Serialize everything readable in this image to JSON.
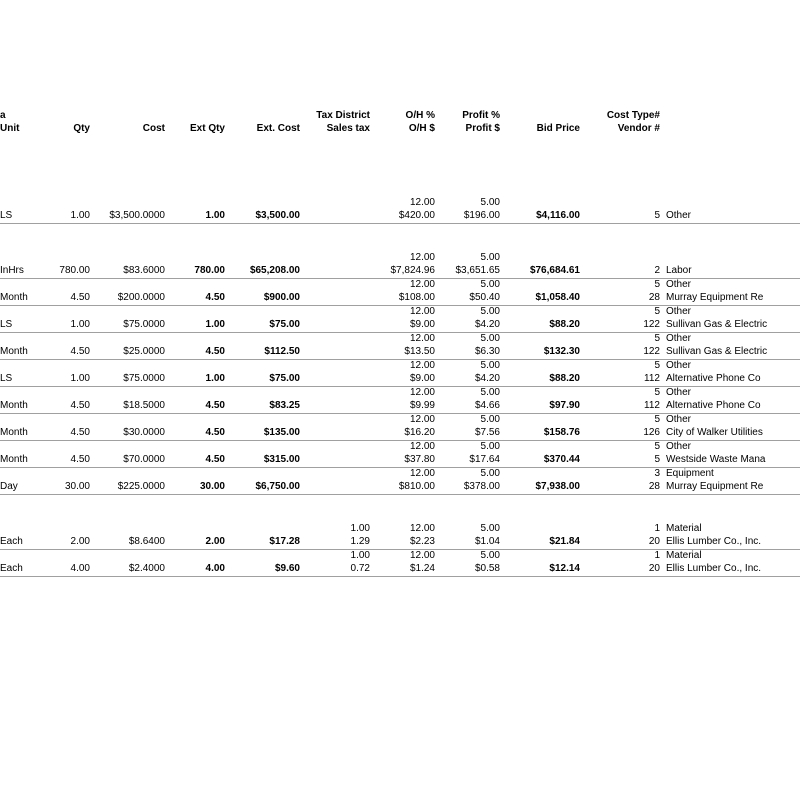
{
  "header": {
    "a": "a",
    "unit": "Unit",
    "qty": "Qty",
    "cost": "Cost",
    "extqty": "Ext Qty",
    "extcost": "Ext. Cost",
    "tax1": "Tax District",
    "tax2": "Sales tax",
    "oh1": "O/H %",
    "oh2": "O/H $",
    "profit1": "Profit %",
    "profit2": "Profit $",
    "bid": "Bid Price",
    "ct1": "Cost Type#",
    "ct2": "Vendor #"
  },
  "rows": [
    {
      "unit": "LS",
      "qty": "1.00",
      "cost": "$3,500.0000",
      "extqty": "1.00",
      "extcost": "$3,500.00",
      "tax": "",
      "ohp": "12.00",
      "ohd": "$420.00",
      "pp": "5.00",
      "pd": "$196.00",
      "bid": "$4,116.00",
      "ctn": "5",
      "ctl": "Other",
      "vn": "",
      "vl": ""
    },
    {
      "unit": "InHrs",
      "qty": "780.00",
      "cost": "$83.6000",
      "extqty": "780.00",
      "extcost": "$65,208.00",
      "tax": "",
      "ohp": "12.00",
      "ohd": "$7,824.96",
      "pp": "5.00",
      "pd": "$3,651.65",
      "bid": "$76,684.61",
      "ctn": "2",
      "ctl": "Labor",
      "vn": "",
      "vl": ""
    },
    {
      "unit": "Month",
      "qty": "4.50",
      "cost": "$200.0000",
      "extqty": "4.50",
      "extcost": "$900.00",
      "tax": "",
      "ohp": "12.00",
      "ohd": "$108.00",
      "pp": "5.00",
      "pd": "$50.40",
      "bid": "$1,058.40",
      "ctn": "5",
      "ctl": "Other",
      "vn": "28",
      "vl": "Murray Equipment Re"
    },
    {
      "unit": "LS",
      "qty": "1.00",
      "cost": "$75.0000",
      "extqty": "1.00",
      "extcost": "$75.00",
      "tax": "",
      "ohp": "12.00",
      "ohd": "$9.00",
      "pp": "5.00",
      "pd": "$4.20",
      "bid": "$88.20",
      "ctn": "5",
      "ctl": "Other",
      "vn": "122",
      "vl": "Sullivan Gas & Electric"
    },
    {
      "unit": "Month",
      "qty": "4.50",
      "cost": "$25.0000",
      "extqty": "4.50",
      "extcost": "$112.50",
      "tax": "",
      "ohp": "12.00",
      "ohd": "$13.50",
      "pp": "5.00",
      "pd": "$6.30",
      "bid": "$132.30",
      "ctn": "5",
      "ctl": "Other",
      "vn": "122",
      "vl": "Sullivan Gas & Electric"
    },
    {
      "unit": "LS",
      "qty": "1.00",
      "cost": "$75.0000",
      "extqty": "1.00",
      "extcost": "$75.00",
      "tax": "",
      "ohp": "12.00",
      "ohd": "$9.00",
      "pp": "5.00",
      "pd": "$4.20",
      "bid": "$88.20",
      "ctn": "5",
      "ctl": "Other",
      "vn": "112",
      "vl": "Alternative Phone Co"
    },
    {
      "unit": "Month",
      "qty": "4.50",
      "cost": "$18.5000",
      "extqty": "4.50",
      "extcost": "$83.25",
      "tax": "",
      "ohp": "12.00",
      "ohd": "$9.99",
      "pp": "5.00",
      "pd": "$4.66",
      "bid": "$97.90",
      "ctn": "5",
      "ctl": "Other",
      "vn": "112",
      "vl": "Alternative Phone Co"
    },
    {
      "unit": "Month",
      "qty": "4.50",
      "cost": "$30.0000",
      "extqty": "4.50",
      "extcost": "$135.00",
      "tax": "",
      "ohp": "12.00",
      "ohd": "$16.20",
      "pp": "5.00",
      "pd": "$7.56",
      "bid": "$158.76",
      "ctn": "5",
      "ctl": "Other",
      "vn": "126",
      "vl": "City of Walker Utilities"
    },
    {
      "unit": "Month",
      "qty": "4.50",
      "cost": "$70.0000",
      "extqty": "4.50",
      "extcost": "$315.00",
      "tax": "",
      "ohp": "12.00",
      "ohd": "$37.80",
      "pp": "5.00",
      "pd": "$17.64",
      "bid": "$370.44",
      "ctn": "5",
      "ctl": "Other",
      "vn": "5",
      "vl": "Westside Waste Mana"
    },
    {
      "unit": "Day",
      "qty": "30.00",
      "cost": "$225.0000",
      "extqty": "30.00",
      "extcost": "$6,750.00",
      "tax": "",
      "ohp": "12.00",
      "ohd": "$810.00",
      "pp": "5.00",
      "pd": "$378.00",
      "bid": "$7,938.00",
      "ctn": "3",
      "ctl": "Equipment",
      "vn": "28",
      "vl": "Murray Equipment Re"
    },
    {
      "unit": "Each",
      "qty": "2.00",
      "cost": "$8.6400",
      "extqty": "2.00",
      "extcost": "$17.28",
      "tax1": "1.00",
      "tax2": "1.29",
      "ohp": "12.00",
      "ohd": "$2.23",
      "pp": "5.00",
      "pd": "$1.04",
      "bid": "$21.84",
      "ctn": "1",
      "ctl": "Material",
      "vn": "20",
      "vl": "Ellis Lumber Co., Inc."
    },
    {
      "unit": "Each",
      "qty": "4.00",
      "cost": "$2.4000",
      "extqty": "4.00",
      "extcost": "$9.60",
      "tax1": "1.00",
      "tax2": "0.72",
      "ohp": "12.00",
      "ohd": "$1.24",
      "pp": "5.00",
      "pd": "$0.58",
      "bid": "$12.14",
      "ctn": "1",
      "ctl": "Material",
      "vn": "20",
      "vl": "Ellis Lumber Co., Inc."
    }
  ]
}
